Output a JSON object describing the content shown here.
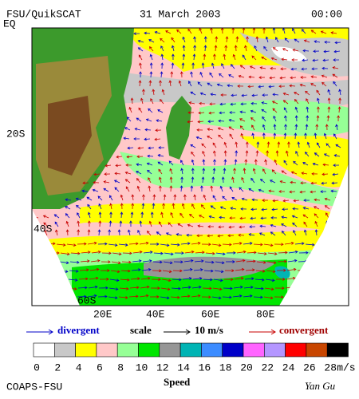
{
  "header": {
    "title": "FSU/QuikSCAT",
    "date": "31 March 2003",
    "time": "00:00"
  },
  "lat_labels": [
    "EQ",
    "20S",
    "40S",
    "60S"
  ],
  "lon_labels": [
    "20E",
    "40E",
    "60E",
    "80E"
  ],
  "legend": {
    "divergent": "divergent",
    "scale": "scale",
    "scale_value": "10 m/s",
    "convergent": "convergent"
  },
  "colorbar": {
    "colors": [
      "#ffffff",
      "#c8c8c8",
      "#ffff00",
      "#ffc8c8",
      "#96ff96",
      "#00e600",
      "#969696",
      "#00b4b4",
      "#3c8cff",
      "#0000c8",
      "#ff64ff",
      "#b496ff",
      "#ff0000",
      "#c84600",
      "#000000"
    ],
    "labels": [
      0,
      2,
      4,
      6,
      8,
      10,
      12,
      14,
      16,
      18,
      20,
      22,
      24,
      26,
      28
    ],
    "unit": "m/s",
    "title": "Speed"
  },
  "footer": {
    "left": "COAPS-FSU",
    "right": "Yan Gu"
  }
}
